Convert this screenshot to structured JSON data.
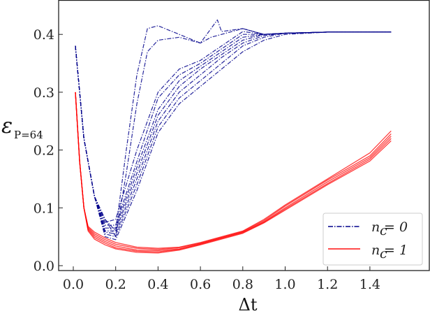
{
  "chart_data": {
    "type": "line",
    "title": "",
    "xlabel": "Δt",
    "ylabel": "ε_{P=64}",
    "ylabel_main": "ε",
    "ylabel_sub": "P=64",
    "xlim": [
      -0.07,
      1.68
    ],
    "ylim": [
      -0.017,
      0.45
    ],
    "xticks": [
      0.0,
      0.2,
      0.4,
      0.6,
      0.8,
      1.0,
      1.2,
      1.4
    ],
    "xtick_labels": [
      "0.0",
      "0.2",
      "0.4",
      "0.6",
      "0.8",
      "1.0",
      "1.2",
      "1.4"
    ],
    "yticks": [
      0.0,
      0.1,
      0.2,
      0.3,
      0.4
    ],
    "ytick_labels": [
      "0.0",
      "0.1",
      "0.2",
      "0.3",
      "0.4"
    ],
    "grid": false,
    "legend_position": "lower right",
    "legend": [
      {
        "label_var": "n",
        "label_sub": "c",
        "label_rest": " = 0",
        "color": "#00008b",
        "style": "dash-dot"
      },
      {
        "label_var": "n",
        "label_sub": "c",
        "label_rest": " = 1",
        "color": "#ff0000",
        "style": "solid"
      }
    ],
    "series": [
      {
        "name": "n_c = 0 (run 1)",
        "color": "#00008b",
        "style": "dash-dot",
        "x": [
          0.01,
          0.05,
          0.1,
          0.15,
          0.2,
          0.25,
          0.3,
          0.35,
          0.4,
          0.5,
          0.6,
          0.65,
          0.68,
          0.7,
          0.8,
          0.9,
          1.0,
          1.2,
          1.5
        ],
        "y": [
          0.38,
          0.22,
          0.12,
          0.08,
          0.06,
          0.2,
          0.33,
          0.41,
          0.415,
          0.4,
          0.385,
          0.41,
          0.425,
          0.405,
          0.41,
          0.4,
          0.402,
          0.404,
          0.404
        ]
      },
      {
        "name": "n_c = 0 (run 2)",
        "color": "#00008b",
        "style": "dash-dot",
        "x": [
          0.01,
          0.05,
          0.1,
          0.15,
          0.2,
          0.25,
          0.3,
          0.35,
          0.4,
          0.5,
          0.6,
          0.65,
          0.7,
          0.8,
          0.9,
          1.0,
          1.2,
          1.5
        ],
        "y": [
          0.38,
          0.22,
          0.12,
          0.08,
          0.05,
          0.16,
          0.28,
          0.37,
          0.39,
          0.395,
          0.385,
          0.395,
          0.4,
          0.41,
          0.4,
          0.402,
          0.404,
          0.404
        ]
      },
      {
        "name": "n_c = 0 (run 3)",
        "color": "#00008b",
        "style": "dash-dot",
        "x": [
          0.01,
          0.05,
          0.1,
          0.15,
          0.2,
          0.3,
          0.4,
          0.5,
          0.6,
          0.7,
          0.8,
          0.9,
          1.0,
          1.2,
          1.5
        ],
        "y": [
          0.38,
          0.22,
          0.12,
          0.075,
          0.08,
          0.2,
          0.3,
          0.34,
          0.355,
          0.38,
          0.405,
          0.4,
          0.402,
          0.404,
          0.404
        ]
      },
      {
        "name": "n_c = 0 (run 4)",
        "color": "#00008b",
        "style": "dash-dot",
        "x": [
          0.01,
          0.05,
          0.1,
          0.15,
          0.2,
          0.3,
          0.4,
          0.5,
          0.6,
          0.7,
          0.8,
          0.9,
          1.0,
          1.2,
          1.5
        ],
        "y": [
          0.38,
          0.22,
          0.12,
          0.07,
          0.07,
          0.18,
          0.29,
          0.33,
          0.35,
          0.375,
          0.4,
          0.4,
          0.402,
          0.404,
          0.404
        ]
      },
      {
        "name": "n_c = 0 (run 5)",
        "color": "#00008b",
        "style": "dash-dot",
        "x": [
          0.01,
          0.05,
          0.1,
          0.15,
          0.2,
          0.3,
          0.4,
          0.5,
          0.6,
          0.7,
          0.8,
          0.9,
          1.0,
          1.2,
          1.5
        ],
        "y": [
          0.38,
          0.22,
          0.12,
          0.065,
          0.065,
          0.17,
          0.27,
          0.32,
          0.345,
          0.37,
          0.395,
          0.4,
          0.402,
          0.404,
          0.404
        ]
      },
      {
        "name": "n_c = 0 (run 6)",
        "color": "#00008b",
        "style": "dash-dot",
        "x": [
          0.01,
          0.05,
          0.1,
          0.15,
          0.2,
          0.3,
          0.4,
          0.5,
          0.6,
          0.7,
          0.8,
          0.9,
          1.0,
          1.2,
          1.5
        ],
        "y": [
          0.38,
          0.22,
          0.12,
          0.06,
          0.06,
          0.16,
          0.26,
          0.31,
          0.34,
          0.365,
          0.39,
          0.4,
          0.402,
          0.404,
          0.404
        ]
      },
      {
        "name": "n_c = 0 (run 7)",
        "color": "#00008b",
        "style": "dash-dot",
        "x": [
          0.01,
          0.05,
          0.1,
          0.15,
          0.2,
          0.3,
          0.4,
          0.5,
          0.6,
          0.7,
          0.8,
          0.9,
          1.0,
          1.2,
          1.5
        ],
        "y": [
          0.38,
          0.22,
          0.12,
          0.058,
          0.055,
          0.15,
          0.25,
          0.3,
          0.33,
          0.36,
          0.385,
          0.398,
          0.402,
          0.404,
          0.404
        ]
      },
      {
        "name": "n_c = 0 (run 8)",
        "color": "#00008b",
        "style": "dash-dot",
        "x": [
          0.01,
          0.05,
          0.1,
          0.15,
          0.2,
          0.3,
          0.4,
          0.5,
          0.6,
          0.7,
          0.8,
          0.9,
          1.0,
          1.2,
          1.5
        ],
        "y": [
          0.38,
          0.22,
          0.12,
          0.055,
          0.05,
          0.14,
          0.24,
          0.29,
          0.32,
          0.35,
          0.38,
          0.395,
          0.402,
          0.404,
          0.404
        ]
      },
      {
        "name": "n_c = 0 (run 9)",
        "color": "#00008b",
        "style": "dash-dot",
        "x": [
          0.01,
          0.05,
          0.1,
          0.15,
          0.2,
          0.3,
          0.4,
          0.5,
          0.6,
          0.7,
          0.8,
          0.9,
          1.0,
          1.2,
          1.5
        ],
        "y": [
          0.38,
          0.22,
          0.12,
          0.05,
          0.045,
          0.13,
          0.23,
          0.28,
          0.31,
          0.34,
          0.37,
          0.39,
          0.4,
          0.404,
          0.404
        ]
      },
      {
        "name": "n_c = 1 (run 1)",
        "color": "#ff0000",
        "style": "solid",
        "x": [
          0.01,
          0.03,
          0.05,
          0.07,
          0.1,
          0.15,
          0.2,
          0.3,
          0.4,
          0.5,
          0.6,
          0.7,
          0.8,
          0.9,
          1.0,
          1.2,
          1.4,
          1.5
        ],
        "y": [
          0.3,
          0.18,
          0.1,
          0.068,
          0.058,
          0.048,
          0.04,
          0.032,
          0.03,
          0.032,
          0.04,
          0.05,
          0.06,
          0.08,
          0.105,
          0.15,
          0.195,
          0.233
        ]
      },
      {
        "name": "n_c = 1 (run 2)",
        "color": "#ff0000",
        "style": "solid",
        "x": [
          0.01,
          0.03,
          0.05,
          0.07,
          0.1,
          0.15,
          0.2,
          0.3,
          0.4,
          0.5,
          0.6,
          0.7,
          0.8,
          0.9,
          1.0,
          1.2,
          1.4,
          1.5
        ],
        "y": [
          0.3,
          0.18,
          0.1,
          0.066,
          0.055,
          0.045,
          0.037,
          0.03,
          0.028,
          0.031,
          0.039,
          0.049,
          0.059,
          0.078,
          0.103,
          0.148,
          0.19,
          0.228
        ]
      },
      {
        "name": "n_c = 1 (run 3)",
        "color": "#ff0000",
        "style": "solid",
        "x": [
          0.01,
          0.03,
          0.05,
          0.07,
          0.1,
          0.15,
          0.2,
          0.3,
          0.4,
          0.5,
          0.6,
          0.7,
          0.8,
          0.9,
          1.0,
          1.2,
          1.4,
          1.5
        ],
        "y": [
          0.3,
          0.18,
          0.1,
          0.064,
          0.052,
          0.042,
          0.034,
          0.027,
          0.026,
          0.029,
          0.038,
          0.048,
          0.058,
          0.076,
          0.1,
          0.145,
          0.187,
          0.224
        ]
      },
      {
        "name": "n_c = 1 (run 4)",
        "color": "#ff0000",
        "style": "solid",
        "x": [
          0.01,
          0.03,
          0.05,
          0.07,
          0.1,
          0.15,
          0.2,
          0.3,
          0.4,
          0.5,
          0.6,
          0.7,
          0.8,
          0.9,
          1.0,
          1.2,
          1.4,
          1.5
        ],
        "y": [
          0.3,
          0.18,
          0.1,
          0.062,
          0.049,
          0.039,
          0.031,
          0.025,
          0.024,
          0.028,
          0.037,
          0.047,
          0.057,
          0.075,
          0.098,
          0.142,
          0.184,
          0.22
        ]
      },
      {
        "name": "n_c = 1 (run 5)",
        "color": "#ff0000",
        "style": "solid",
        "x": [
          0.01,
          0.03,
          0.05,
          0.07,
          0.1,
          0.15,
          0.2,
          0.3,
          0.4,
          0.5,
          0.6,
          0.7,
          0.8,
          0.9,
          1.0,
          1.2,
          1.4,
          1.5
        ],
        "y": [
          0.3,
          0.18,
          0.1,
          0.06,
          0.046,
          0.036,
          0.029,
          0.023,
          0.022,
          0.027,
          0.036,
          0.046,
          0.056,
          0.074,
          0.096,
          0.14,
          0.181,
          0.216
        ]
      }
    ]
  }
}
